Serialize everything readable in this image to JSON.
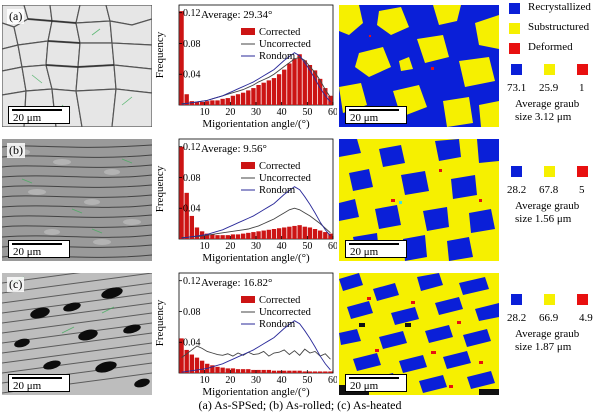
{
  "caption": "(a) As-SPSed; (b) As-rolled; (c) As-heated",
  "scale_bar": "20 μm",
  "top_legend": {
    "items": [
      {
        "label": "Recrystallized",
        "color": "#0a1fd8"
      },
      {
        "label": "Substructured",
        "color": "#f6f000"
      },
      {
        "label": "Deformed",
        "color": "#e81010"
      }
    ]
  },
  "colors": {
    "recrystallized": "#0a1fd8",
    "substructured": "#f6f000",
    "deformed": "#e81010"
  },
  "rows": [
    {
      "label": "(a)",
      "percentages": [
        "73.1",
        "25.9",
        "1"
      ],
      "grain_line1": "Average graub",
      "grain_line2": "size 3.12 μm"
    },
    {
      "label": "(b)",
      "percentages": [
        "28.2",
        "67.8",
        "5"
      ],
      "grain_line1": "Average graub",
      "grain_line2": "size 1.56 μm"
    },
    {
      "label": "(c)",
      "percentages": [
        "28.2",
        "66.9",
        "4.9"
      ],
      "grain_line1": "Average graub",
      "grain_line2": "size 1.87 μm"
    }
  ],
  "chart_data": [
    {
      "type": "bar",
      "average_label": "Average: 29.34°",
      "xlabel": "Migorientation angle/(°)",
      "ylabel": "Frequency",
      "xlim": [
        0,
        60
      ],
      "ylim": [
        0,
        0.13
      ],
      "xticks": [
        "10",
        "20",
        "30",
        "40",
        "50",
        "60"
      ],
      "yticks": [
        "0.04",
        "0.08",
        "0.12"
      ],
      "legend": [
        "Corrected",
        "Uncorrected",
        "Rondom"
      ],
      "x": [
        1,
        3,
        5,
        7,
        9,
        11,
        13,
        15,
        17,
        19,
        21,
        23,
        25,
        27,
        29,
        31,
        33,
        35,
        37,
        39,
        41,
        43,
        45,
        47,
        49,
        51,
        53,
        55,
        57,
        59
      ],
      "series": [
        {
          "name": "Corrected",
          "values": [
            0.122,
            0.014,
            0.005,
            0.004,
            0.004,
            0.005,
            0.006,
            0.006,
            0.008,
            0.009,
            0.012,
            0.014,
            0.016,
            0.019,
            0.022,
            0.026,
            0.029,
            0.032,
            0.035,
            0.04,
            0.046,
            0.054,
            0.06,
            0.066,
            0.058,
            0.052,
            0.045,
            0.034,
            0.022,
            0.012
          ]
        },
        {
          "name": "Uncorrected",
          "values": [
            0.002,
            0.002,
            0.003,
            0.004,
            0.005,
            0.006,
            0.008,
            0.01,
            0.012,
            0.014,
            0.016,
            0.018,
            0.02,
            0.023,
            0.026,
            0.03,
            0.033,
            0.036,
            0.04,
            0.045,
            0.05,
            0.055,
            0.06,
            0.062,
            0.058,
            0.05,
            0.042,
            0.032,
            0.02,
            0.01
          ]
        },
        {
          "name": "Rondom",
          "values": [
            0.001,
            0.002,
            0.003,
            0.004,
            0.005,
            0.006,
            0.008,
            0.01,
            0.012,
            0.015,
            0.018,
            0.021,
            0.024,
            0.027,
            0.03,
            0.034,
            0.038,
            0.042,
            0.046,
            0.052,
            0.058,
            0.063,
            0.068,
            0.064,
            0.055,
            0.045,
            0.034,
            0.022,
            0.012,
            0.004
          ]
        }
      ]
    },
    {
      "type": "bar",
      "average_label": "Average: 9.56°",
      "xlabel": "Migorientation angle/(°)",
      "ylabel": "Frequency",
      "xlim": [
        0,
        60
      ],
      "ylim": [
        0,
        0.13
      ],
      "xticks": [
        "10",
        "20",
        "30",
        "40",
        "50",
        "60"
      ],
      "yticks": [
        "0.04",
        "0.08",
        "0.12"
      ],
      "legend": [
        "Corrected",
        "Uncorrected",
        "Rondom"
      ],
      "x": [
        1,
        3,
        5,
        7,
        9,
        11,
        13,
        15,
        17,
        19,
        21,
        23,
        25,
        27,
        29,
        31,
        33,
        35,
        37,
        39,
        41,
        43,
        45,
        47,
        49,
        51,
        53,
        55,
        57,
        59
      ],
      "series": [
        {
          "name": "Corrected",
          "values": [
            0.12,
            0.06,
            0.03,
            0.015,
            0.01,
            0.007,
            0.006,
            0.005,
            0.005,
            0.005,
            0.006,
            0.006,
            0.007,
            0.008,
            0.009,
            0.01,
            0.011,
            0.012,
            0.013,
            0.014,
            0.015,
            0.016,
            0.017,
            0.018,
            0.016,
            0.015,
            0.013,
            0.011,
            0.009,
            0.007
          ]
        },
        {
          "name": "Uncorrected",
          "values": [
            0.002,
            0.002,
            0.003,
            0.003,
            0.004,
            0.005,
            0.006,
            0.007,
            0.008,
            0.009,
            0.01,
            0.011,
            0.012,
            0.013,
            0.015,
            0.017,
            0.02,
            0.023,
            0.026,
            0.03,
            0.034,
            0.038,
            0.04,
            0.038,
            0.034,
            0.03,
            0.025,
            0.02,
            0.014,
            0.008
          ]
        },
        {
          "name": "Rondom",
          "values": [
            0.001,
            0.002,
            0.003,
            0.004,
            0.005,
            0.006,
            0.008,
            0.01,
            0.012,
            0.015,
            0.018,
            0.021,
            0.024,
            0.027,
            0.03,
            0.034,
            0.038,
            0.042,
            0.046,
            0.052,
            0.058,
            0.063,
            0.068,
            0.064,
            0.055,
            0.045,
            0.034,
            0.022,
            0.012,
            0.004
          ]
        }
      ]
    },
    {
      "type": "bar",
      "average_label": "Average: 16.82°",
      "xlabel": "Migorientation angle/(°)",
      "ylabel": "Frequency",
      "xlim": [
        0,
        60
      ],
      "ylim": [
        0,
        0.13
      ],
      "xticks": [
        "10",
        "20",
        "30",
        "40",
        "50",
        "60"
      ],
      "yticks": [
        "0.04",
        "0.08",
        "0.12"
      ],
      "legend": [
        "Corrected",
        "Uncorrected",
        "Rondom"
      ],
      "x": [
        1,
        3,
        5,
        7,
        9,
        11,
        13,
        15,
        17,
        19,
        21,
        23,
        25,
        27,
        29,
        31,
        33,
        35,
        37,
        39,
        41,
        43,
        45,
        47,
        49,
        51,
        53,
        55,
        57,
        59
      ],
      "series": [
        {
          "name": "Corrected",
          "values": [
            0.045,
            0.03,
            0.024,
            0.02,
            0.016,
            0.012,
            0.01,
            0.008,
            0.007,
            0.006,
            0.006,
            0.005,
            0.005,
            0.005,
            0.004,
            0.004,
            0.004,
            0.004,
            0.003,
            0.003,
            0.003,
            0.003,
            0.003,
            0.003,
            0.002,
            0.002,
            0.002,
            0.002,
            0.002,
            0.002
          ]
        },
        {
          "name": "Uncorrected",
          "values": [
            0.02,
            0.025,
            0.03,
            0.035,
            0.032,
            0.028,
            0.026,
            0.024,
            0.023,
            0.025,
            0.022,
            0.026,
            0.023,
            0.027,
            0.024,
            0.025,
            0.028,
            0.022,
            0.026,
            0.027,
            0.03,
            0.024,
            0.029,
            0.023,
            0.031,
            0.026,
            0.028,
            0.022,
            0.025,
            0.018
          ]
        },
        {
          "name": "Rondom",
          "values": [
            0.001,
            0.002,
            0.003,
            0.004,
            0.005,
            0.006,
            0.008,
            0.01,
            0.012,
            0.015,
            0.018,
            0.021,
            0.024,
            0.027,
            0.03,
            0.034,
            0.038,
            0.042,
            0.046,
            0.052,
            0.058,
            0.063,
            0.068,
            0.064,
            0.055,
            0.045,
            0.034,
            0.022,
            0.012,
            0.004
          ]
        }
      ]
    }
  ]
}
